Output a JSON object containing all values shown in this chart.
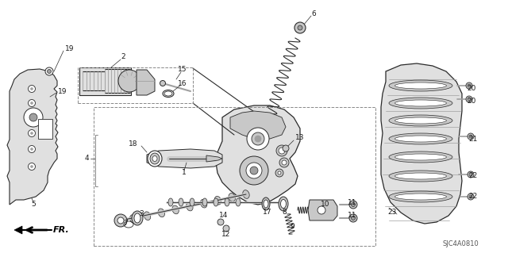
{
  "diagram_code": "SJC4A0810",
  "bg": "#ffffff",
  "lc": "#2a2a2a",
  "tc": "#1a1a1a",
  "gray1": "#c8c8c8",
  "gray2": "#a0a0a0",
  "gray3": "#e0e0e0",
  "dashed": "#888888",
  "figsize": [
    6.4,
    3.19
  ],
  "dpi": 100
}
